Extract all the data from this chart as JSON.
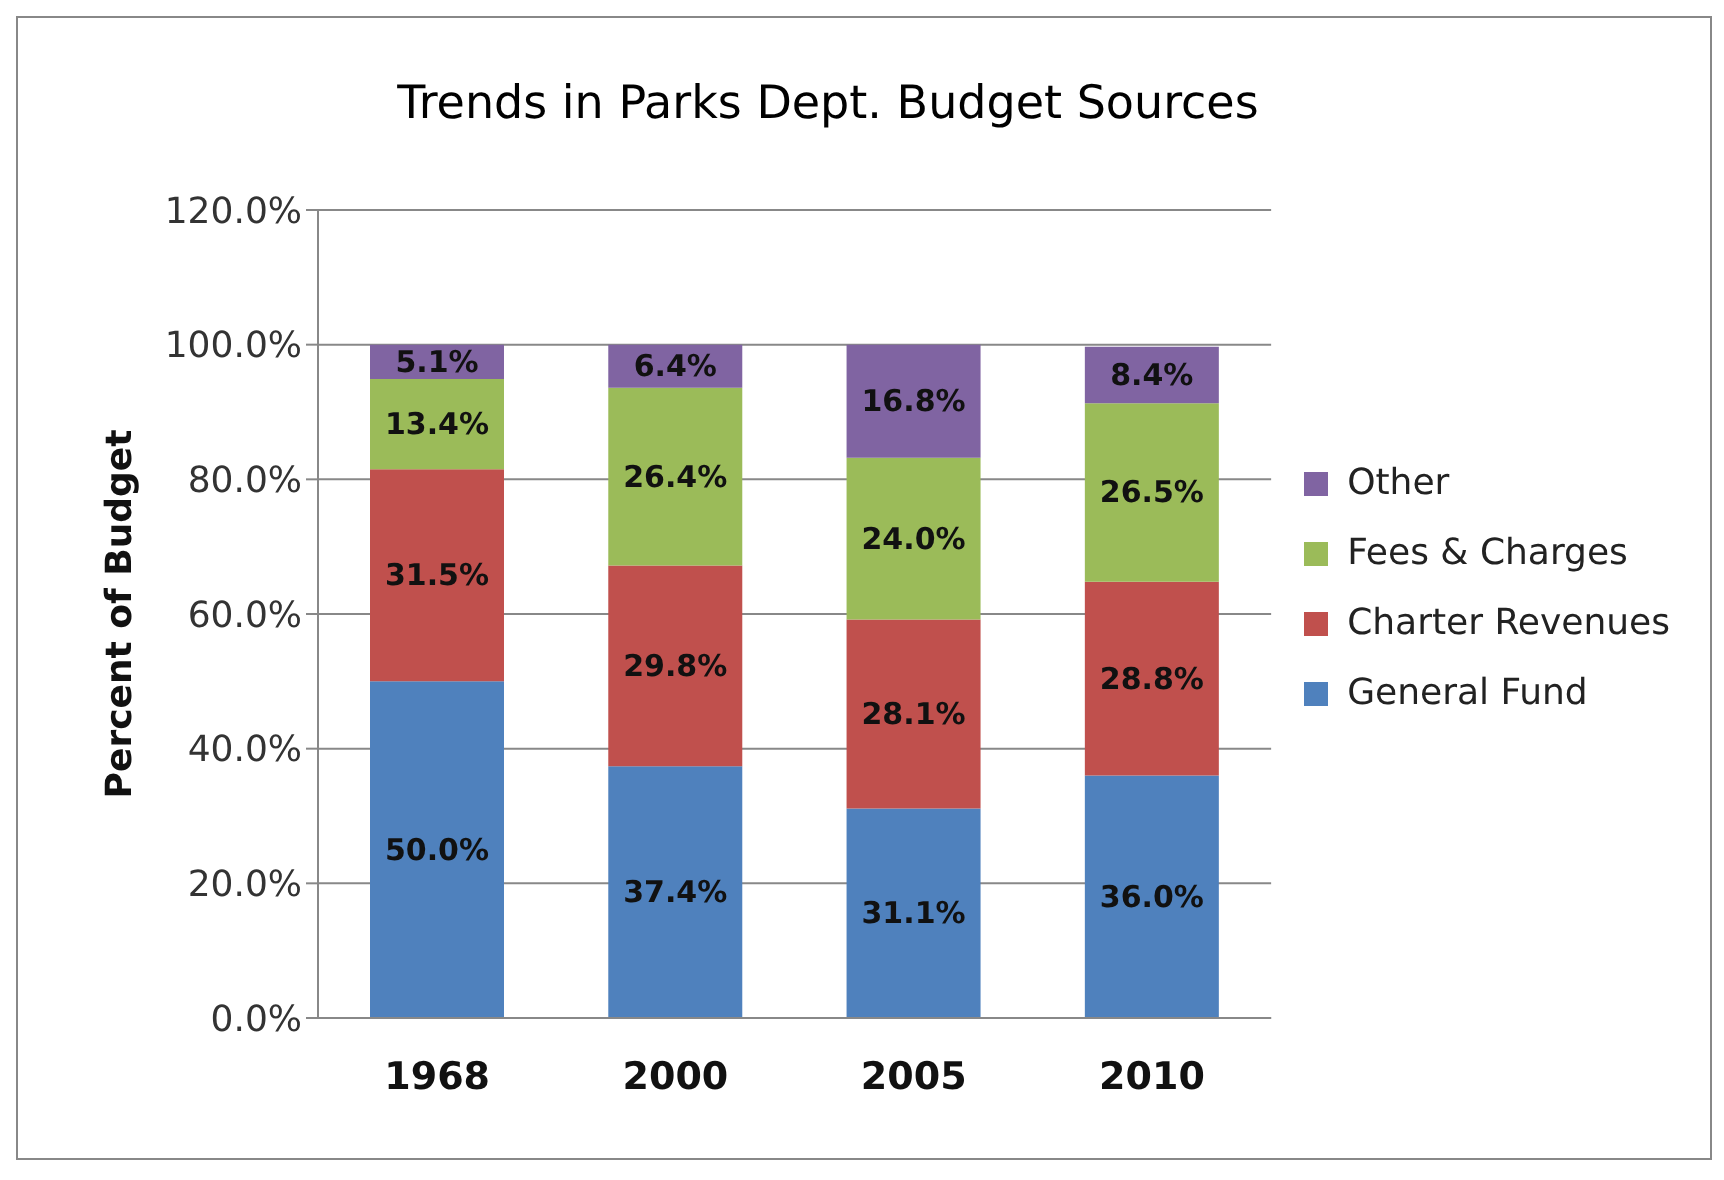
{
  "chart_data": {
    "type": "bar",
    "title": "Trends in Parks Dept. Budget Sources",
    "ylabel": "Percent of Budget",
    "categories": [
      "1968",
      "2000",
      "2005",
      "2010"
    ],
    "stacked": true,
    "series": [
      {
        "name": "General Fund",
        "color": "#4f81bd",
        "values": [
          50.0,
          37.4,
          31.1,
          36.0
        ],
        "value_labels": [
          "50.0%",
          "37.4%",
          "31.1%",
          "36.0%"
        ]
      },
      {
        "name": "Charter Revenues",
        "color": "#c0504d",
        "values": [
          31.5,
          29.8,
          28.1,
          28.8
        ],
        "value_labels": [
          "31.5%",
          "29.8%",
          "28.1%",
          "28.8%"
        ]
      },
      {
        "name": "Fees & Charges",
        "color": "#9bbb59",
        "values": [
          13.4,
          26.4,
          24.0,
          26.5
        ],
        "value_labels": [
          "13.4%",
          "26.4%",
          "24.0%",
          "26.5%"
        ]
      },
      {
        "name": "Other",
        "color": "#8064a2",
        "values": [
          5.1,
          6.4,
          16.8,
          8.4
        ],
        "value_labels": [
          "5.1%",
          "6.4%",
          "16.8%",
          "8.4%"
        ]
      }
    ],
    "ylim": [
      0,
      120
    ],
    "yticks": [
      {
        "value": 0,
        "label": "0.0%"
      },
      {
        "value": 20,
        "label": "20.0%"
      },
      {
        "value": 40,
        "label": "40.0%"
      },
      {
        "value": 60,
        "label": "60.0%"
      },
      {
        "value": 80,
        "label": "80.0%"
      },
      {
        "value": 100,
        "label": "100.0%"
      },
      {
        "value": 120,
        "label": "120.0%"
      }
    ],
    "grid": "y",
    "legend": "right"
  }
}
